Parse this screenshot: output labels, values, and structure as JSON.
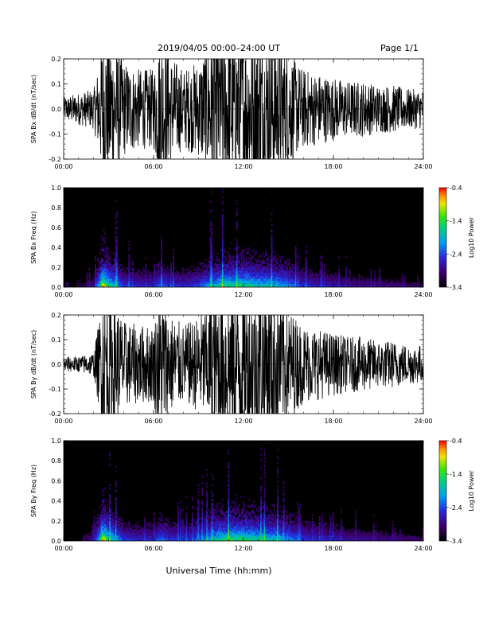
{
  "header": {
    "title": "2019/04/05  00:00–24:00 UT",
    "page": "Page 1/1"
  },
  "footer": {
    "xlabel": "Universal Time (hh:mm)"
  },
  "chart_data": [
    {
      "type": "line",
      "ylabel": "SPA Bx dB/dt (nT/sec)",
      "xlim": [
        0,
        24
      ],
      "ylim": [
        -0.2,
        0.2
      ],
      "xticks": [
        "00:00",
        "06:00",
        "12:00",
        "18:00",
        "24:00"
      ],
      "yticks": [
        "-0.2",
        "-0.1",
        "0.0",
        "0.1",
        "0.2"
      ],
      "envelope": {
        "x": [
          0,
          1,
          2,
          2.4,
          2.6,
          3,
          4,
          5,
          6,
          6.5,
          7,
          8,
          9,
          10,
          10.5,
          11,
          12,
          13,
          14,
          15,
          15.5,
          16,
          17,
          18,
          19,
          20,
          21,
          22,
          23,
          24
        ],
        "amplitude": [
          0.03,
          0.04,
          0.05,
          0.12,
          0.2,
          0.2,
          0.12,
          0.1,
          0.1,
          0.2,
          0.14,
          0.1,
          0.12,
          0.2,
          0.2,
          0.2,
          0.2,
          0.2,
          0.2,
          0.15,
          0.12,
          0.1,
          0.09,
          0.08,
          0.07,
          0.07,
          0.06,
          0.06,
          0.05,
          0.05
        ]
      }
    },
    {
      "type": "heatmap",
      "ylabel": "SPA Bx Freq (Hz)",
      "xlim": [
        0,
        24
      ],
      "ylim": [
        0,
        1.0
      ],
      "xticks": [
        "00:00",
        "06:00",
        "12:00",
        "18:00",
        "24:00"
      ],
      "yticks": [
        "0.0",
        "0.2",
        "0.4",
        "0.6",
        "0.8",
        "1.0"
      ],
      "colorbar": {
        "label": "Log10 Power",
        "range": [
          -3.4,
          -0.4
        ],
        "ticks": [
          "-0.4",
          "-1.4",
          "-2.4",
          "-3.4"
        ]
      },
      "activity": {
        "x": [
          0,
          1,
          2,
          2.4,
          2.6,
          3,
          4,
          5,
          6,
          6.5,
          7,
          8,
          9,
          10,
          10.5,
          11,
          12,
          13,
          14,
          15,
          15.5,
          16,
          17,
          18,
          19,
          20,
          21,
          22,
          23,
          24
        ],
        "level": [
          0.1,
          0.12,
          0.2,
          0.6,
          1.0,
          0.7,
          0.35,
          0.3,
          0.3,
          0.45,
          0.35,
          0.3,
          0.38,
          0.55,
          0.65,
          0.7,
          0.7,
          0.62,
          0.6,
          0.5,
          0.4,
          0.32,
          0.28,
          0.26,
          0.22,
          0.2,
          0.2,
          0.18,
          0.16,
          0.15
        ]
      }
    },
    {
      "type": "line",
      "ylabel": "SPA By dB/dt (nT/sec)",
      "xlim": [
        0,
        24
      ],
      "ylim": [
        -0.2,
        0.2
      ],
      "xticks": [
        "00:00",
        "06:00",
        "12:00",
        "18:00",
        "24:00"
      ],
      "yticks": [
        "-0.2",
        "-0.1",
        "0.0",
        "0.1",
        "0.2"
      ],
      "envelope": {
        "x": [
          0,
          1,
          2,
          2.4,
          2.6,
          3,
          4,
          5,
          6,
          6.5,
          7,
          8,
          9,
          10,
          10.5,
          11,
          12,
          13,
          14,
          15,
          15.5,
          16,
          17,
          18,
          19,
          20,
          21,
          22,
          23,
          24
        ],
        "amplitude": [
          0.02,
          0.02,
          0.03,
          0.12,
          0.2,
          0.2,
          0.11,
          0.1,
          0.1,
          0.2,
          0.13,
          0.1,
          0.12,
          0.18,
          0.2,
          0.2,
          0.2,
          0.2,
          0.2,
          0.14,
          0.12,
          0.1,
          0.09,
          0.08,
          0.07,
          0.07,
          0.06,
          0.06,
          0.05,
          0.05
        ]
      }
    },
    {
      "type": "heatmap",
      "ylabel": "SPA By Freq (Hz)",
      "xlim": [
        0,
        24
      ],
      "ylim": [
        0,
        1.0
      ],
      "xticks": [
        "00:00",
        "06:00",
        "12:00",
        "18:00",
        "24:00"
      ],
      "yticks": [
        "0.0",
        "0.2",
        "0.4",
        "0.6",
        "0.8",
        "1.0"
      ],
      "colorbar": {
        "label": "Log10 Power",
        "range": [
          -3.4,
          -0.4
        ],
        "ticks": [
          "-0.4",
          "-1.4",
          "-2.4",
          "-3.4"
        ]
      },
      "activity": {
        "x": [
          0,
          1,
          2,
          2.4,
          2.6,
          3,
          4,
          5,
          6,
          6.5,
          7,
          8,
          9,
          10,
          10.5,
          11,
          12,
          13,
          14,
          15,
          15.5,
          16,
          17,
          18,
          19,
          20,
          21,
          22,
          23,
          24
        ],
        "level": [
          0.1,
          0.12,
          0.2,
          0.6,
          1.0,
          0.7,
          0.35,
          0.3,
          0.3,
          0.45,
          0.35,
          0.32,
          0.4,
          0.58,
          0.68,
          0.72,
          0.72,
          0.65,
          0.62,
          0.5,
          0.42,
          0.34,
          0.3,
          0.28,
          0.24,
          0.22,
          0.2,
          0.18,
          0.17,
          0.16
        ]
      }
    }
  ]
}
